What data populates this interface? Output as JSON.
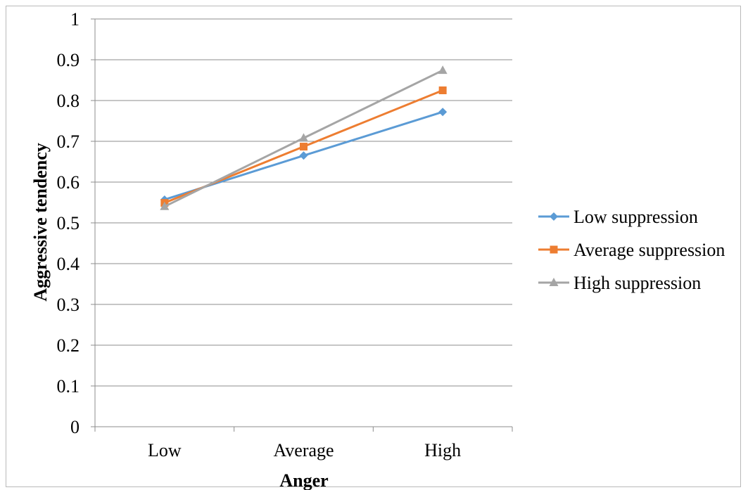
{
  "chart_data": {
    "type": "line",
    "title": "",
    "xlabel": "Anger",
    "ylabel": "Aggressive tendency",
    "categories": [
      "Low",
      "Average",
      "High"
    ],
    "ylim": [
      0,
      1
    ],
    "yticks": [
      "0",
      "0.1",
      "0.2",
      "0.3",
      "0.4",
      "0.5",
      "0.6",
      "0.7",
      "0.8",
      "0.9",
      "1"
    ],
    "grid": true,
    "legend_position": "right",
    "series": [
      {
        "name": "Low suppression",
        "values": [
          0.557,
          0.665,
          0.772
        ],
        "color": "#5b9bd5",
        "marker": "diamond"
      },
      {
        "name": "Average suppression",
        "values": [
          0.549,
          0.687,
          0.825
        ],
        "color": "#ed7d31",
        "marker": "square"
      },
      {
        "name": "High suppression",
        "values": [
          0.54,
          0.708,
          0.874
        ],
        "color": "#a5a5a5",
        "marker": "triangle"
      }
    ]
  }
}
